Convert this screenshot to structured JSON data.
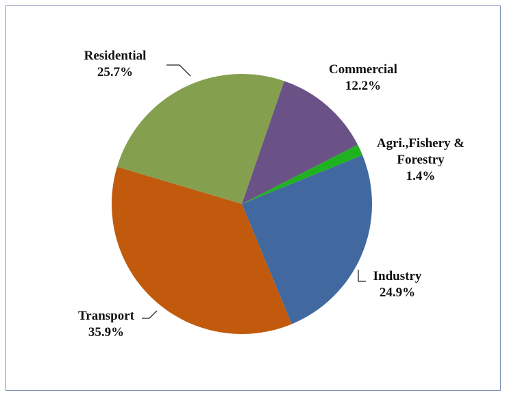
{
  "chart_data": {
    "type": "pie",
    "categories": [
      "Commercial",
      "Agri.,Fishery & Forestry",
      "Industry",
      "Transport",
      "Residential"
    ],
    "values": [
      12.2,
      1.4,
      24.9,
      35.9,
      25.7
    ],
    "value_labels": [
      "12.2%",
      "1.4%",
      "24.9%",
      "35.9%",
      "25.7%"
    ],
    "colors": [
      "#6b5286",
      "#1fb21f",
      "#41699f",
      "#c15a0d",
      "#84a04f"
    ]
  }
}
